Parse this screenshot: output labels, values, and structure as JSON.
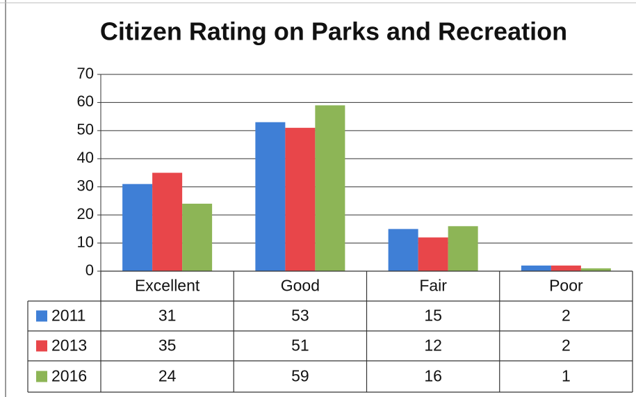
{
  "chart_data": {
    "type": "bar",
    "title": "Citizen Rating on Parks and Recreation",
    "categories": [
      "Excellent",
      "Good",
      "Fair",
      "Poor"
    ],
    "series": [
      {
        "name": "2011",
        "color": "#3f7fd6",
        "values": [
          31,
          53,
          15,
          2
        ]
      },
      {
        "name": "2013",
        "color": "#e8464a",
        "values": [
          35,
          51,
          12,
          2
        ]
      },
      {
        "name": "2016",
        "color": "#8db556",
        "values": [
          24,
          59,
          16,
          1
        ]
      }
    ],
    "ylim": [
      0,
      70
    ],
    "yticks": [
      0,
      10,
      20,
      30,
      40,
      50,
      60,
      70
    ],
    "grid": true
  }
}
